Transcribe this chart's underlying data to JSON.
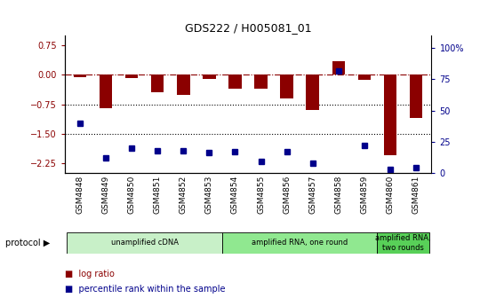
{
  "title": "GDS222 / H005081_01",
  "samples": [
    "GSM4848",
    "GSM4849",
    "GSM4850",
    "GSM4851",
    "GSM4852",
    "GSM4853",
    "GSM4854",
    "GSM4855",
    "GSM4856",
    "GSM4857",
    "GSM4858",
    "GSM4859",
    "GSM4860",
    "GSM4861"
  ],
  "log_ratio": [
    -0.05,
    -0.85,
    -0.08,
    -0.45,
    -0.5,
    -0.1,
    -0.35,
    -0.35,
    -0.6,
    -0.9,
    0.35,
    -0.12,
    -2.05,
    -1.1
  ],
  "percentile_rank": [
    40,
    12,
    20,
    18,
    18,
    16,
    17,
    9,
    17,
    8,
    82,
    22,
    3,
    4
  ],
  "ylim_left": [
    -2.5,
    1.0
  ],
  "ylim_right": [
    0,
    110
  ],
  "yticks_left": [
    0.75,
    0,
    -0.75,
    -1.5,
    -2.25
  ],
  "yticks_right": [
    100,
    75,
    50,
    25,
    0
  ],
  "bar_color": "#8B0000",
  "dot_color": "#00008B",
  "protocol_groups": [
    {
      "label": "unamplified cDNA",
      "start": 0,
      "end": 6,
      "color": "#c8f0c8"
    },
    {
      "label": "amplified RNA, one round",
      "start": 6,
      "end": 12,
      "color": "#90e890"
    },
    {
      "label": "amplified RNA,\ntwo rounds",
      "start": 12,
      "end": 14,
      "color": "#58d058"
    }
  ]
}
